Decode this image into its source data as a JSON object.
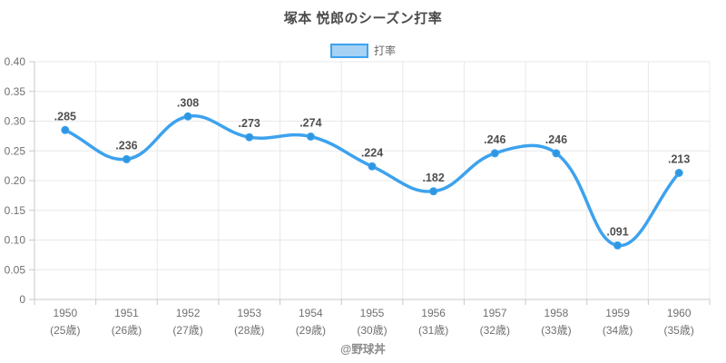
{
  "header": {
    "title": "塚本 悦郎のシーズン打率"
  },
  "legend": {
    "label": "打率"
  },
  "footer": {
    "credit": "@野球丼"
  },
  "colors": {
    "line": "#3da2ee",
    "point": "#2f97e2",
    "legend_fill": "#a5d2f5",
    "grid": "#e8e8e8",
    "axis": "#c9c9c9",
    "point_label": "#4f4f4f",
    "tick_label": "#707070"
  },
  "chart_data": {
    "type": "line",
    "title": "塚本 悦郎のシーズン打率",
    "series_name": "打率",
    "smooth": true,
    "grid": true,
    "legend_position": "top",
    "ylabel": "",
    "xlabel": "",
    "ylim": [
      0,
      0.4
    ],
    "y_tick_labels": [
      "0.40",
      "0.35",
      "0.30",
      "0.25",
      "0.20",
      "0.15",
      "0.10",
      "0.05",
      "0"
    ],
    "categories": [
      {
        "year": "1950",
        "age": "(25歳)"
      },
      {
        "year": "1951",
        "age": "(26歳)"
      },
      {
        "year": "1952",
        "age": "(27歳)"
      },
      {
        "year": "1953",
        "age": "(28歳)"
      },
      {
        "year": "1954",
        "age": "(29歳)"
      },
      {
        "year": "1955",
        "age": "(30歳)"
      },
      {
        "year": "1956",
        "age": "(31歳)"
      },
      {
        "year": "1957",
        "age": "(32歳)"
      },
      {
        "year": "1958",
        "age": "(33歳)"
      },
      {
        "year": "1959",
        "age": "(34歳)"
      },
      {
        "year": "1960",
        "age": "(35歳)"
      }
    ],
    "values": [
      0.285,
      0.236,
      0.308,
      0.273,
      0.274,
      0.224,
      0.182,
      0.246,
      0.246,
      0.091,
      0.213
    ],
    "point_labels": [
      ".285",
      ".236",
      ".308",
      ".273",
      ".274",
      ".224",
      ".182",
      ".246",
      ".246",
      ".091",
      ".213"
    ]
  }
}
